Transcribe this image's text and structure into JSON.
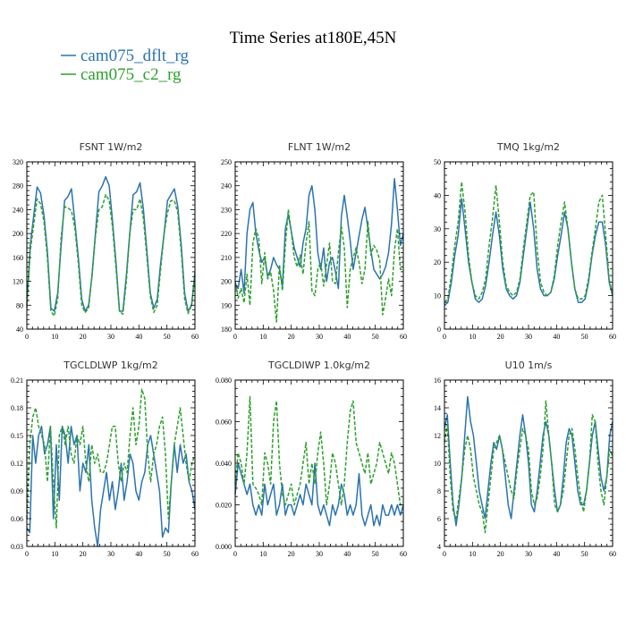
{
  "figure_title": "Time Series at180E,45N",
  "colors": {
    "dflt": "#2b73b0",
    "c2": "#2ca02c"
  },
  "legend": [
    {
      "label": "cam075_dflt_rg",
      "color": "#2b73b0",
      "dash": "solid"
    },
    {
      "label": "cam075_c2_rg",
      "color": "#2ca02c",
      "dash": "dashed"
    }
  ],
  "chart_data": [
    {
      "type": "line",
      "title": "FSNT   1W/m2",
      "xlim": [
        0,
        60
      ],
      "ylim": [
        40,
        320
      ],
      "xticks": [
        0,
        10,
        20,
        30,
        40,
        50,
        60
      ],
      "yticks": [
        40,
        80,
        120,
        160,
        200,
        240,
        280,
        320
      ],
      "ytick_labels": [
        "40",
        "80",
        "120",
        "160",
        "200",
        "240",
        "280",
        "320"
      ],
      "series": [
        {
          "name": "cam075_dflt_rg",
          "values": [
            80,
            180,
            230,
            278,
            268,
            230,
            170,
            75,
            70,
            100,
            180,
            255,
            262,
            275,
            220,
            160,
            90,
            70,
            80,
            130,
            200,
            270,
            280,
            295,
            280,
            220,
            150,
            70,
            70,
            130,
            200,
            265,
            270,
            285,
            240,
            170,
            100,
            75,
            90,
            150,
            200,
            255,
            265,
            275,
            245,
            180,
            100,
            70,
            80,
            135
          ]
        },
        {
          "name": "cam075_c2_rg",
          "values": [
            75,
            170,
            215,
            258,
            250,
            220,
            160,
            70,
            62,
            90,
            195,
            245,
            243,
            238,
            210,
            150,
            80,
            68,
            75,
            130,
            195,
            240,
            245,
            265,
            255,
            210,
            140,
            70,
            65,
            120,
            200,
            240,
            240,
            258,
            225,
            160,
            95,
            68,
            80,
            140,
            200,
            235,
            255,
            255,
            235,
            170,
            90,
            66,
            80,
            130
          ]
        }
      ]
    },
    {
      "type": "line",
      "title": "FLNT   1W/m2",
      "xlim": [
        0,
        60
      ],
      "ylim": [
        180,
        250
      ],
      "xticks": [
        0,
        10,
        20,
        30,
        40,
        50,
        60
      ],
      "yticks": [
        180,
        190,
        200,
        210,
        220,
        230,
        240,
        250
      ],
      "ytick_labels": [
        "180",
        "190",
        "200",
        "210",
        "220",
        "230",
        "240",
        "250"
      ],
      "series": [
        {
          "name": "cam075_dflt_rg",
          "values": [
            199,
            197,
            205,
            195,
            220,
            230,
            233,
            220,
            213,
            208,
            210,
            202,
            205,
            210,
            207,
            205,
            198,
            222,
            228,
            221,
            214,
            210,
            206,
            216,
            222,
            236,
            240,
            230,
            212,
            205,
            214,
            200,
            208,
            210,
            204,
            197,
            227,
            236,
            227,
            217,
            205,
            212,
            219,
            226,
            231,
            222,
            213,
            205,
            203,
            201,
            203,
            206,
            212,
            224,
            243,
            230,
            215,
            220
          ]
        },
        {
          "name": "cam075_c2_rg",
          "values": [
            200,
            193,
            197,
            191,
            203,
            190,
            216,
            222,
            218,
            199,
            212,
            201,
            204,
            196,
            183,
            207,
            196,
            215,
            230,
            221,
            210,
            206,
            211,
            203,
            216,
            225,
            196,
            194,
            205,
            208,
            198,
            207,
            216,
            200,
            199,
            212,
            223,
            214,
            189,
            205,
            210,
            214,
            208,
            199,
            205,
            225,
            211,
            215,
            213,
            209,
            186,
            193,
            201,
            194,
            213,
            222,
            205,
            205
          ]
        }
      ]
    },
    {
      "type": "line",
      "title": "TMQ   1kg/m2",
      "xlim": [
        0,
        60
      ],
      "ylim": [
        0,
        50
      ],
      "xticks": [
        0,
        10,
        20,
        30,
        40,
        50,
        60
      ],
      "yticks": [
        0,
        10,
        20,
        30,
        40,
        50
      ],
      "ytick_labels": [
        "0",
        "10",
        "20",
        "30",
        "40",
        "50"
      ],
      "series": [
        {
          "name": "cam075_dflt_rg",
          "values": [
            7,
            8,
            14,
            22,
            28,
            39,
            30,
            20,
            14,
            9,
            8,
            9,
            13,
            20,
            28,
            35,
            28,
            18,
            12,
            10,
            9,
            10,
            14,
            22,
            30,
            38,
            30,
            18,
            12,
            10,
            10,
            11,
            15,
            22,
            28,
            35,
            30,
            20,
            12,
            8,
            8,
            9,
            14,
            22,
            28,
            32,
            32,
            25,
            14,
            10
          ]
        },
        {
          "name": "cam075_c2_rg",
          "values": [
            8,
            9,
            16,
            25,
            32,
            44,
            35,
            22,
            14,
            10,
            9,
            11,
            15,
            25,
            33,
            43,
            32,
            20,
            13,
            11,
            10,
            11,
            15,
            24,
            32,
            40,
            41,
            24,
            14,
            11,
            10,
            11,
            16,
            25,
            32,
            38,
            30,
            20,
            12,
            9,
            9,
            10,
            15,
            23,
            30,
            38,
            40,
            28,
            15,
            10
          ]
        }
      ]
    },
    {
      "type": "line",
      "title": "TGCLDLWP   1kg/m2",
      "xlim": [
        0,
        60
      ],
      "ylim": [
        0.03,
        0.21
      ],
      "xticks": [
        0,
        10,
        20,
        30,
        40,
        50,
        60
      ],
      "yticks": [
        0.03,
        0.06,
        0.09,
        0.12,
        0.15,
        0.18,
        0.21
      ],
      "ytick_labels": [
        "0.03",
        "0.06",
        "0.09",
        "0.12",
        "0.15",
        "0.18",
        "0.21"
      ],
      "series": [
        {
          "name": "cam075_dflt_rg",
          "values": [
            0.05,
            0.045,
            0.15,
            0.12,
            0.15,
            0.16,
            0.13,
            0.14,
            0.16,
            0.06,
            0.14,
            0.08,
            0.16,
            0.15,
            0.12,
            0.16,
            0.14,
            0.15,
            0.09,
            0.12,
            0.11,
            0.14,
            0.08,
            0.05,
            0.03,
            0.07,
            0.09,
            0.11,
            0.08,
            0.1,
            0.07,
            0.09,
            0.12,
            0.08,
            0.1,
            0.13,
            0.12,
            0.09,
            0.08,
            0.1,
            0.11,
            0.14,
            0.15,
            0.13,
            0.11,
            0.09,
            0.04,
            0.05,
            0.045,
            0.1,
            0.14,
            0.11,
            0.14,
            0.12,
            0.13,
            0.1,
            0.09,
            0.07
          ]
        },
        {
          "name": "cam075_c2_rg",
          "values": [
            0.06,
            0.14,
            0.17,
            0.18,
            0.16,
            0.15,
            0.14,
            0.1,
            0.16,
            0.1,
            0.05,
            0.15,
            0.16,
            0.14,
            0.16,
            0.13,
            0.12,
            0.15,
            0.14,
            0.16,
            0.12,
            0.1,
            0.14,
            0.12,
            0.13,
            0.11,
            0.11,
            0.12,
            0.14,
            0.16,
            0.16,
            0.12,
            0.1,
            0.12,
            0.11,
            0.15,
            0.18,
            0.14,
            0.16,
            0.2,
            0.19,
            0.13,
            0.1,
            0.13,
            0.14,
            0.16,
            0.17,
            0.13,
            0.06,
            0.1,
            0.14,
            0.16,
            0.18,
            0.15,
            0.12,
            0.1,
            0.12,
            0.13
          ]
        }
      ]
    },
    {
      "type": "line",
      "title": "TGCLDIWP   1.0kg/m2",
      "xlim": [
        0,
        60
      ],
      "ylim": [
        0,
        0.08
      ],
      "xticks": [
        0,
        10,
        20,
        30,
        40,
        50,
        60
      ],
      "yticks": [
        0,
        0.02,
        0.04,
        0.06,
        0.08
      ],
      "ytick_labels": [
        "0.000",
        "0.020",
        "0.040",
        "0.060",
        "0.080"
      ],
      "series": [
        {
          "name": "cam075_dflt_rg",
          "values": [
            0.025,
            0.04,
            0.035,
            0.03,
            0.025,
            0.03,
            0.02,
            0.015,
            0.02,
            0.015,
            0.03,
            0.02,
            0.025,
            0.03,
            0.015,
            0.02,
            0.03,
            0.015,
            0.02,
            0.02,
            0.015,
            0.02,
            0.025,
            0.02,
            0.03,
            0.025,
            0.02,
            0.04,
            0.02,
            0.015,
            0.02,
            0.015,
            0.01,
            0.02,
            0.015,
            0.02,
            0.03,
            0.025,
            0.015,
            0.02,
            0.015,
            0.02,
            0.035,
            0.015,
            0.01,
            0.015,
            0.02,
            0.01,
            0.015,
            0.01,
            0.02,
            0.015,
            0.015,
            0.02,
            0.015,
            0.02,
            0.015,
            0.02
          ]
        },
        {
          "name": "cam075_c2_rg",
          "values": [
            0.03,
            0.045,
            0.04,
            0.03,
            0.045,
            0.072,
            0.03,
            0.028,
            0.025,
            0.02,
            0.045,
            0.04,
            0.03,
            0.06,
            0.07,
            0.04,
            0.025,
            0.02,
            0.025,
            0.03,
            0.02,
            0.025,
            0.03,
            0.04,
            0.05,
            0.03,
            0.04,
            0.03,
            0.045,
            0.055,
            0.04,
            0.02,
            0.03,
            0.045,
            0.04,
            0.03,
            0.02,
            0.03,
            0.05,
            0.065,
            0.07,
            0.05,
            0.045,
            0.04,
            0.035,
            0.045,
            0.03,
            0.035,
            0.04,
            0.05,
            0.045,
            0.04,
            0.035,
            0.045,
            0.04,
            0.03,
            0.02,
            0.02
          ]
        }
      ]
    },
    {
      "type": "line",
      "title": "U10   1m/s",
      "xlim": [
        0,
        60
      ],
      "ylim": [
        4,
        16
      ],
      "xticks": [
        0,
        10,
        20,
        30,
        40,
        50,
        60
      ],
      "yticks": [
        4,
        6,
        8,
        10,
        12,
        14,
        16
      ],
      "ytick_labels": [
        "4",
        "6",
        "8",
        "10",
        "12",
        "14",
        "16"
      ],
      "series": [
        {
          "name": "cam075_dflt_rg",
          "values": [
            12.5,
            13.5,
            10,
            7,
            5.5,
            7,
            9,
            12,
            14.8,
            13,
            12,
            10,
            8,
            7,
            6,
            8,
            10,
            11.5,
            11,
            12,
            11,
            9,
            7,
            6,
            8,
            10,
            12,
            13.5,
            12,
            10,
            7,
            6.5,
            8,
            10,
            12,
            13,
            12,
            10,
            8,
            6.5,
            7,
            9,
            11.5,
            12.5,
            12,
            10,
            8,
            7,
            7,
            8,
            10,
            12,
            13,
            11,
            9,
            8,
            9,
            12,
            13
          ]
        },
        {
          "name": "cam075_c2_rg",
          "values": [
            11.5,
            12.8,
            9,
            6.5,
            6,
            7.5,
            9,
            11,
            12,
            11,
            9,
            8,
            7,
            6.5,
            5,
            7,
            9,
            11,
            11.5,
            12,
            11,
            10,
            9,
            8,
            7.5,
            9.5,
            11,
            12.5,
            12,
            11,
            8,
            7,
            7.5,
            9,
            11,
            14.5,
            12,
            10,
            7,
            6.5,
            7,
            8,
            10,
            12,
            12.5,
            11,
            9,
            7.5,
            6.5,
            8,
            10,
            13.5,
            13,
            10,
            8,
            7,
            9,
            11,
            10.5
          ]
        }
      ]
    }
  ]
}
